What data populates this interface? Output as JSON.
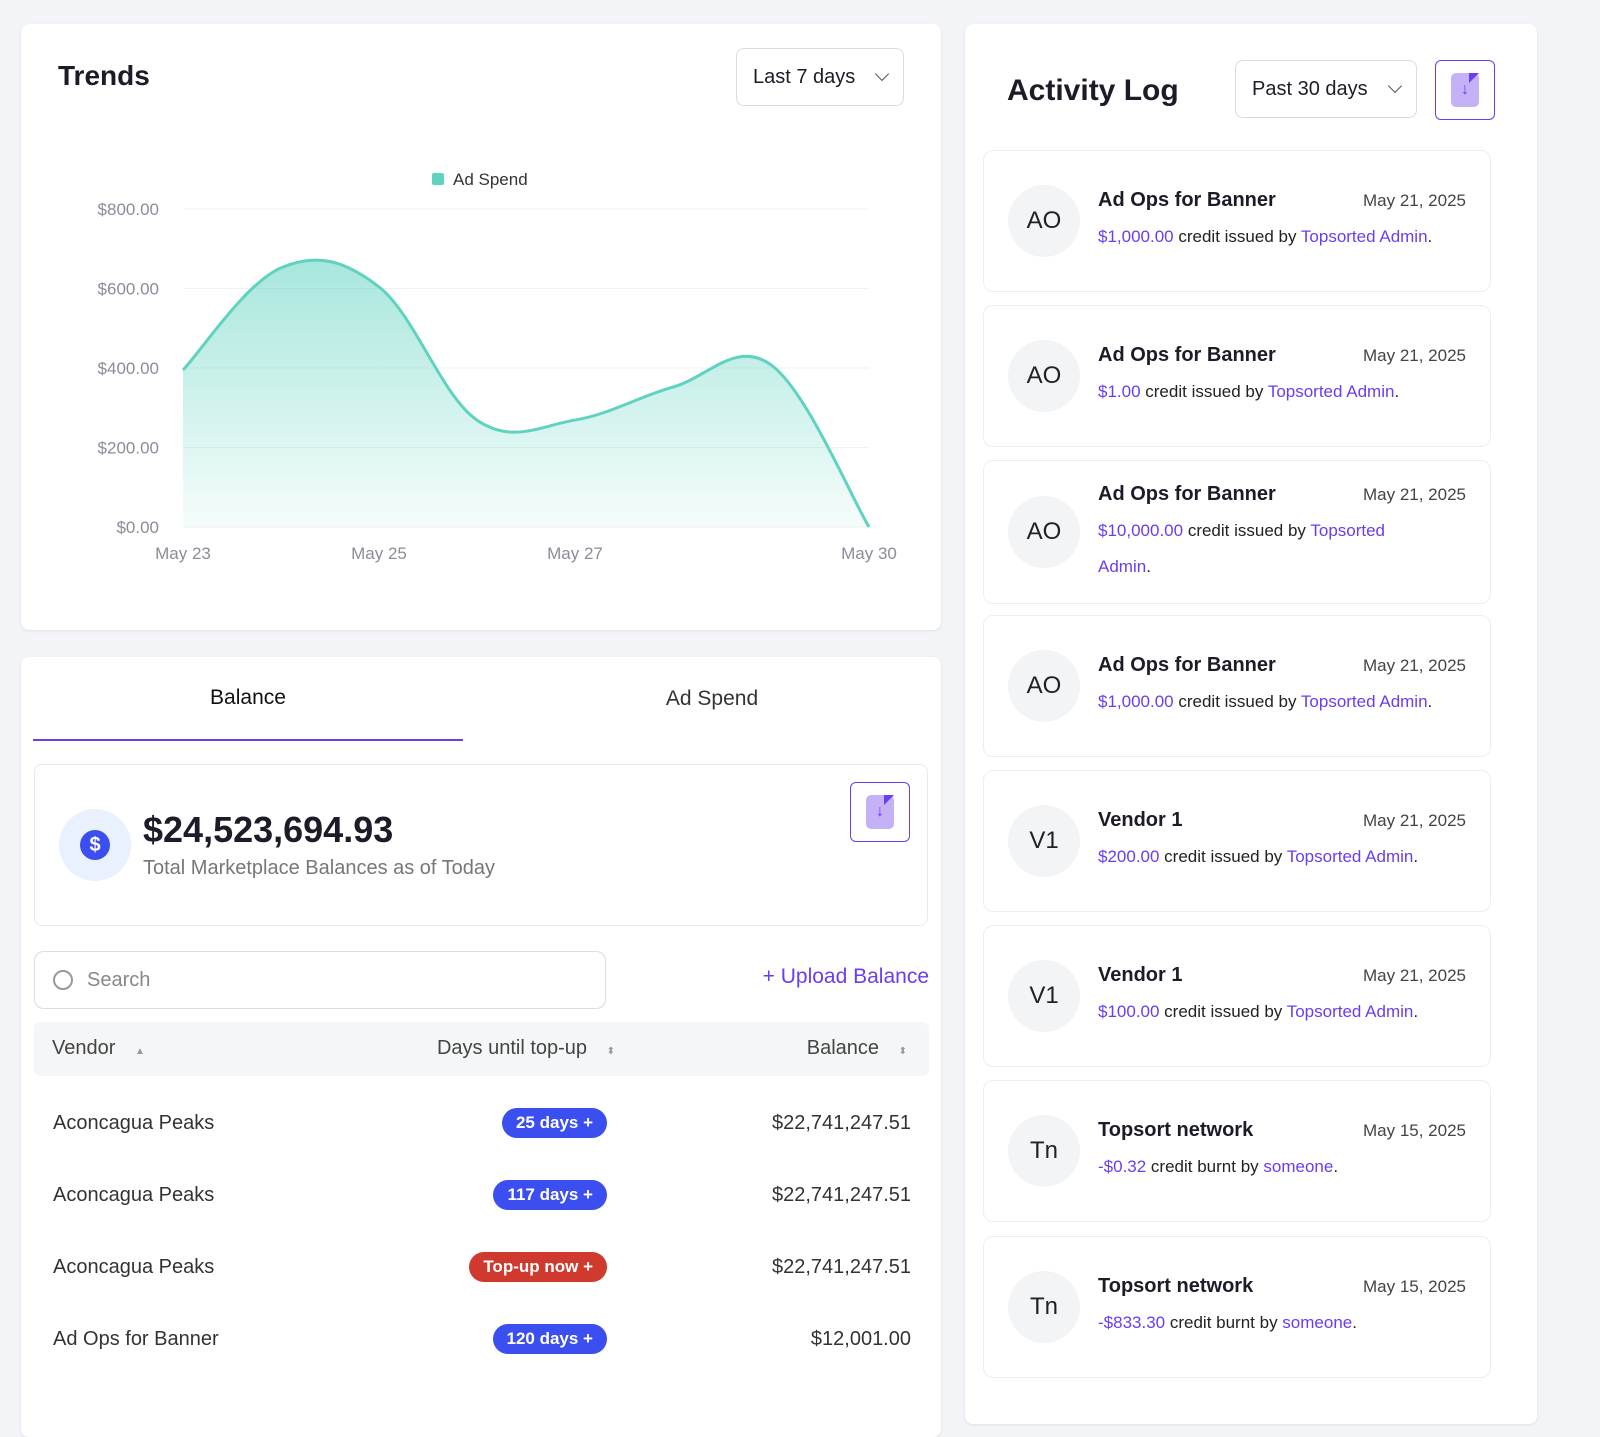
{
  "trends": {
    "title": "Trends",
    "range": "Last 7 days"
  },
  "chart_data": {
    "type": "area",
    "title": "",
    "legend": [
      "Ad Spend"
    ],
    "legend_position": "top-center",
    "x": [
      "May 23",
      "May 24",
      "May 25",
      "May 26",
      "May 27",
      "May 28",
      "May 29",
      "May 30"
    ],
    "x_ticks": [
      "May 23",
      "May 25",
      "May 27",
      "May 30"
    ],
    "series": [
      {
        "name": "Ad Spend",
        "values": [
          395,
          652,
          604,
          269,
          269,
          352,
          408,
          0
        ]
      }
    ],
    "y_ticks": [
      "$0.00",
      "$200.00",
      "$400.00",
      "$600.00",
      "$800.00"
    ],
    "ylim": [
      0,
      800
    ],
    "grid": true,
    "color": "#5fd3c0"
  },
  "balance": {
    "tabs": [
      "Balance",
      "Ad Spend"
    ],
    "total": "$24,523,694.93",
    "subtitle": "Total Marketplace Balances as of Today",
    "search_placeholder": "Search",
    "upload": "+ Upload Balance",
    "columns": [
      "Vendor",
      "Days until top-up",
      "Balance"
    ],
    "rows": [
      {
        "vendor": "Aconcagua Peaks",
        "badge": "25 days +",
        "status": "ok",
        "balance": "$22,741,247.51"
      },
      {
        "vendor": "Aconcagua Peaks",
        "badge": "117 days +",
        "status": "ok",
        "balance": "$22,741,247.51"
      },
      {
        "vendor": "Aconcagua Peaks",
        "badge": "Top-up now +",
        "status": "urgent",
        "balance": "$22,741,247.51"
      },
      {
        "vendor": "Ad Ops for Banner",
        "badge": "120 days +",
        "status": "ok",
        "balance": "$12,001.00"
      }
    ]
  },
  "colors": {
    "ok": "#3b4ef0",
    "urgent": "#d03a2e",
    "accent": "#6a3df0"
  },
  "activity": {
    "title": "Activity Log",
    "range": "Past 30 days",
    "items": [
      {
        "initials": "AO",
        "name": "Ad Ops for Banner",
        "date": "May 21, 2025",
        "amount": "$1,000.00",
        "verb": " credit issued by ",
        "actor": "Topsorted Admin",
        "end": "."
      },
      {
        "initials": "AO",
        "name": "Ad Ops for Banner",
        "date": "May 21, 2025",
        "amount": "$1.00",
        "verb": " credit issued by ",
        "actor": "Topsorted Admin",
        "end": "."
      },
      {
        "initials": "AO",
        "name": "Ad Ops for Banner",
        "date": "May 21, 2025",
        "amount": "$10,000.00",
        "verb": " credit issued by ",
        "actor": "Topsorted Admin",
        "end": "."
      },
      {
        "initials": "AO",
        "name": "Ad Ops for Banner",
        "date": "May 21, 2025",
        "amount": "$1,000.00",
        "verb": " credit issued by ",
        "actor": "Topsorted Admin",
        "end": "."
      },
      {
        "initials": "V1",
        "name": "Vendor 1",
        "date": "May 21, 2025",
        "amount": "$200.00",
        "verb": " credit issued by ",
        "actor": "Topsorted Admin",
        "end": "."
      },
      {
        "initials": "V1",
        "name": "Vendor 1",
        "date": "May 21, 2025",
        "amount": "$100.00",
        "verb": " credit issued by ",
        "actor": "Topsorted Admin",
        "end": "."
      },
      {
        "initials": "Tn",
        "name": "Topsort network",
        "date": "May 15, 2025",
        "amount": "-$0.32",
        "verb": " credit burnt by ",
        "actor": "someone",
        "end": "."
      },
      {
        "initials": "Tn",
        "name": "Topsort network",
        "date": "May 15, 2025",
        "amount": "-$833.30",
        "verb": " credit burnt by ",
        "actor": "someone",
        "end": "."
      }
    ]
  }
}
